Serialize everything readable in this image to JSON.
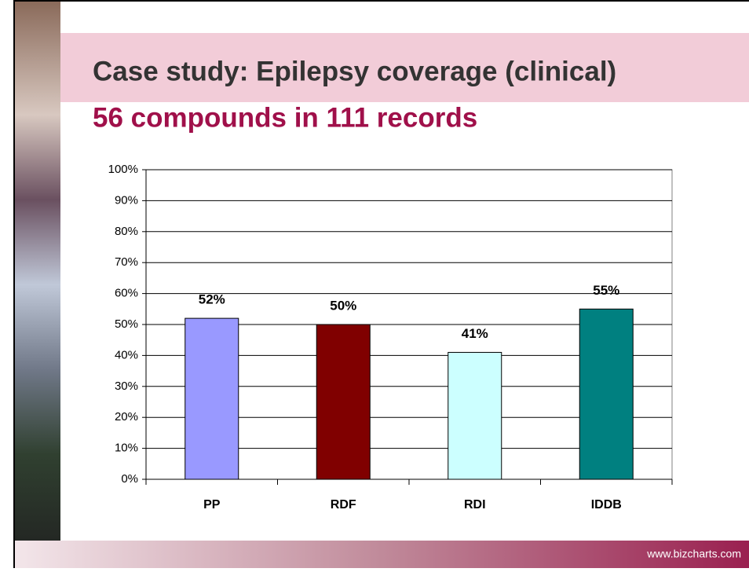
{
  "chart_data": {
    "type": "bar",
    "title": "Case study: Epilepsy coverage (clinical)",
    "subtitle": "56 compounds in 111 records",
    "categories": [
      "PP",
      "RDF",
      "RDI",
      "IDDB"
    ],
    "values": [
      52,
      50,
      41,
      55
    ],
    "value_labels": [
      "52%",
      "50%",
      "41%",
      "55%"
    ],
    "colors": [
      "#9999ff",
      "#800000",
      "#ccffff",
      "#008080"
    ],
    "ylim": [
      0,
      100
    ],
    "yticks": [
      {
        "value": 0,
        "label": "0%"
      },
      {
        "value": 10,
        "label": "10%"
      },
      {
        "value": 20,
        "label": "20%"
      },
      {
        "value": 30,
        "label": "30%"
      },
      {
        "value": 40,
        "label": "40%"
      },
      {
        "value": 50,
        "label": "50%"
      },
      {
        "value": 60,
        "label": "60%"
      },
      {
        "value": 70,
        "label": "70%"
      },
      {
        "value": 80,
        "label": "80%"
      },
      {
        "value": 90,
        "label": "90%"
      },
      {
        "value": 100,
        "label": "100%"
      }
    ],
    "grid": true
  },
  "footer": {
    "text": "www.bizcharts.com"
  }
}
